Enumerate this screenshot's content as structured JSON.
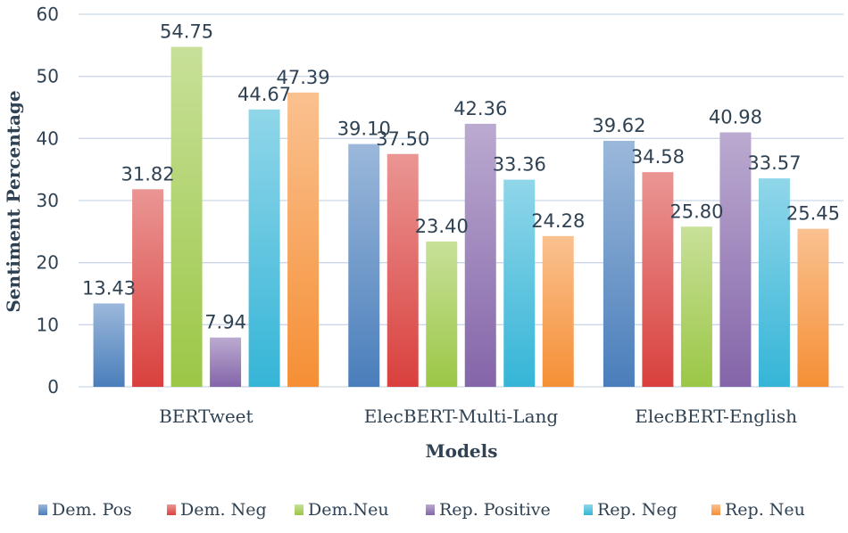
{
  "chart_data": {
    "type": "bar",
    "title": "",
    "xlabel": "Models",
    "ylabel": "Sentiment Percentage",
    "ylim": [
      0,
      60
    ],
    "yticks": [
      "0",
      "10",
      "20",
      "30",
      "40",
      "50",
      "60"
    ],
    "grid": true,
    "legend_position": "bottom",
    "categories": [
      "BERTweet",
      "ElecBERT-Multi-Lang",
      "ElecBERT-English"
    ],
    "series": [
      {
        "name": "Dem. Pos",
        "color": "#4a7ebb",
        "values": [
          13.43,
          39.1,
          39.62
        ],
        "labels": [
          "13.43",
          "39.10",
          "39.62"
        ]
      },
      {
        "name": "Dem. Neg",
        "color": "#d9403d",
        "values": [
          31.82,
          37.5,
          34.58
        ],
        "labels": [
          "31.82",
          "37.50",
          "34.58"
        ]
      },
      {
        "name": "Dem.Neu",
        "color": "#9bc746",
        "values": [
          54.75,
          23.4,
          25.8
        ],
        "labels": [
          "54.75",
          "23.40",
          "25.80"
        ]
      },
      {
        "name": "Rep. Positive",
        "color": "#8465a9",
        "values": [
          7.94,
          42.36,
          40.98
        ],
        "labels": [
          "7.94",
          "42.36",
          "40.98"
        ]
      },
      {
        "name": "Rep. Neg",
        "color": "#35b5d7",
        "values": [
          44.67,
          33.36,
          33.57
        ],
        "labels": [
          "44.67",
          "33.36",
          "33.57"
        ]
      },
      {
        "name": "Rep. Neu",
        "color": "#f58f35",
        "values": [
          47.39,
          24.28,
          25.45
        ],
        "labels": [
          "47.39",
          "24.28",
          "25.45"
        ]
      }
    ]
  }
}
